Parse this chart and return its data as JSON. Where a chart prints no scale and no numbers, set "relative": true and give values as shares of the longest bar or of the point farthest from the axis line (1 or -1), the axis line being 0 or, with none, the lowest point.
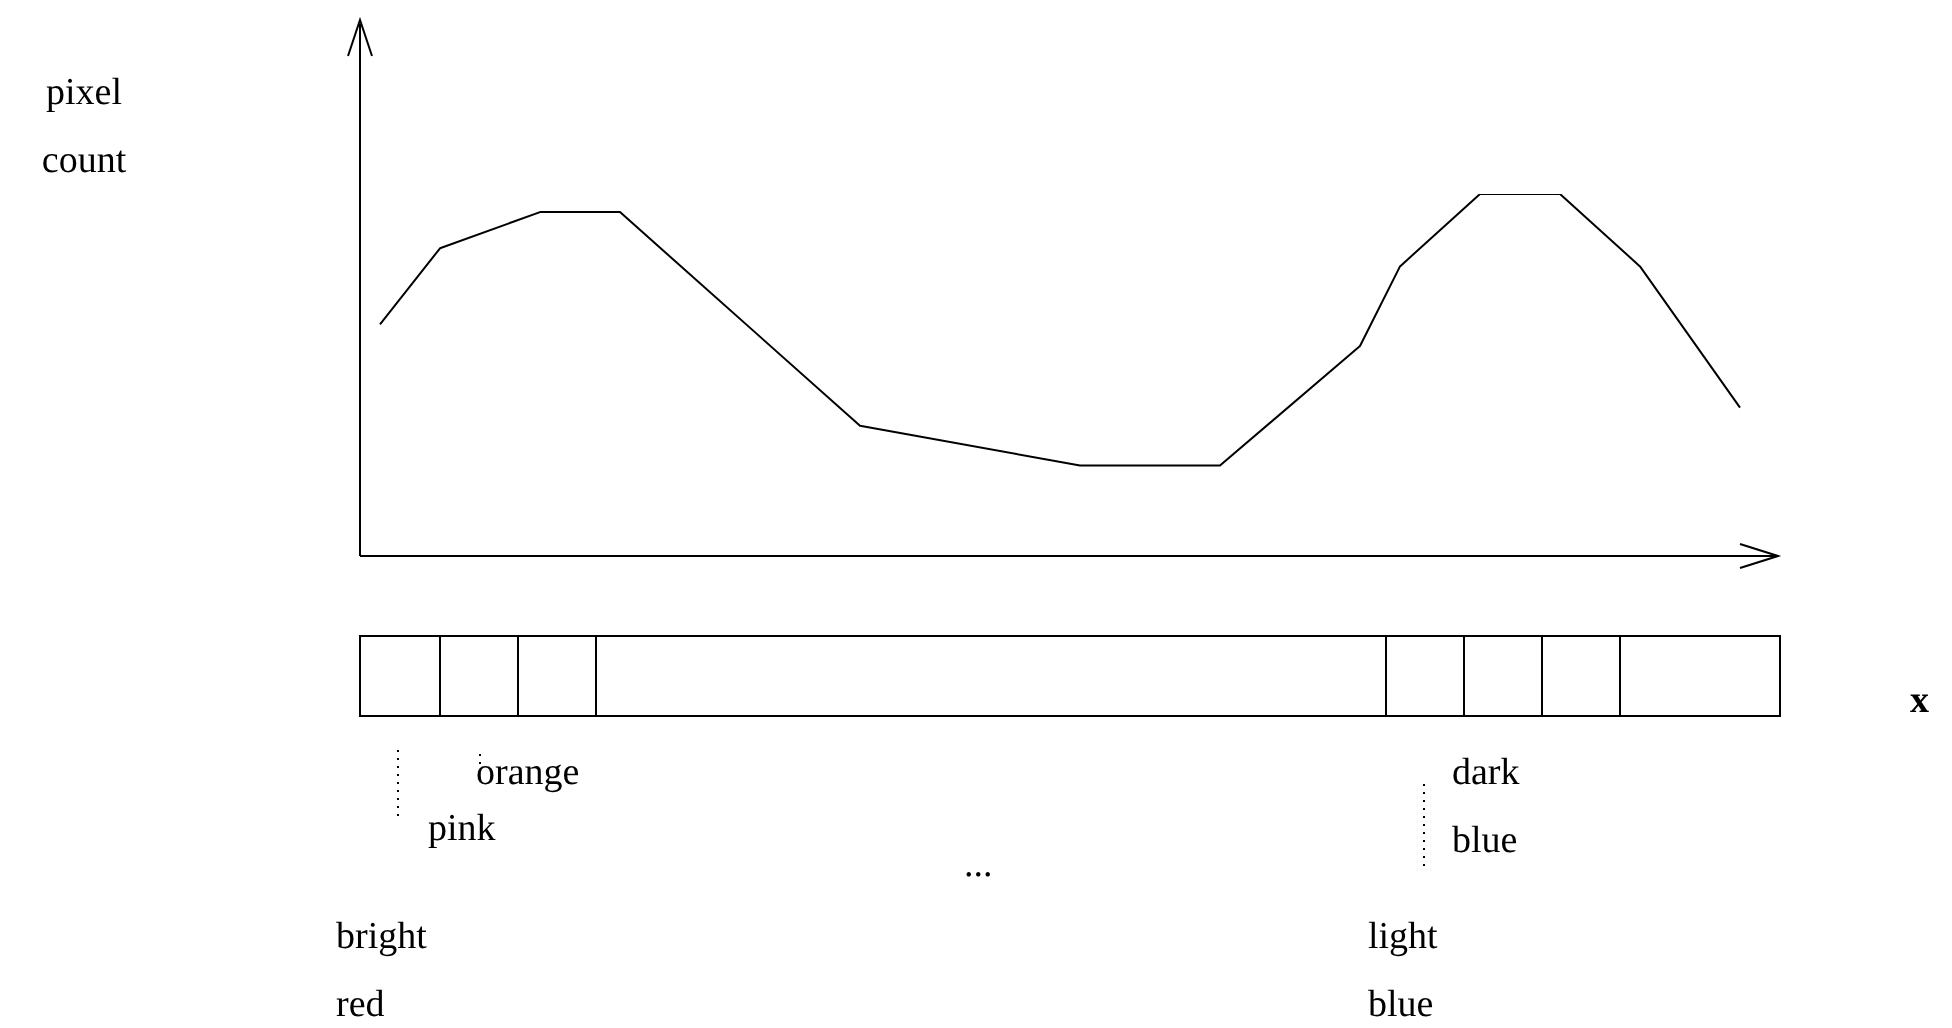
{
  "chart_data": {
    "type": "line",
    "relative": true,
    "color": "#000000",
    "marker": "none",
    "legend": false,
    "categories": [
      null,
      null,
      null,
      null,
      null,
      null,
      null,
      null,
      null,
      null,
      null,
      null,
      null,
      null,
      null,
      null,
      null,
      null,
      null,
      null,
      null,
      null,
      null,
      null,
      null,
      null,
      null,
      null,
      null,
      null,
      null,
      null,
      null,
      null,
      null,
      null,
      null,
      null,
      null,
      null,
      null,
      null,
      null,
      null,
      null,
      null,
      null,
      null,
      null,
      null,
      null,
      null,
      null,
      null,
      null,
      null,
      null,
      null,
      null,
      null,
      null,
      null,
      null,
      null,
      null,
      null,
      null,
      null,
      null
    ],
    "values": [
      0.64,
      null,
      null,
      0.85,
      null,
      null,
      null,
      null,
      0.95,
      null,
      null,
      null,
      0.95,
      null,
      null,
      null,
      null,
      null,
      null,
      null,
      null,
      null,
      null,
      null,
      0.36,
      null,
      null,
      null,
      null,
      null,
      null,
      null,
      null,
      null,
      null,
      0.25,
      null,
      null,
      null,
      null,
      null,
      null,
      0.25,
      null,
      null,
      null,
      null,
      null,
      null,
      0.58,
      null,
      0.8,
      null,
      null,
      null,
      1,
      null,
      null,
      null,
      1,
      null,
      null,
      null,
      0.8,
      null,
      null,
      null,
      null,
      0.41
    ],
    "annotations": [
      "pixel count",
      "x",
      "bright red",
      "pink",
      "orange",
      "...",
      "light blue",
      "dark blue"
    ]
  }
}
